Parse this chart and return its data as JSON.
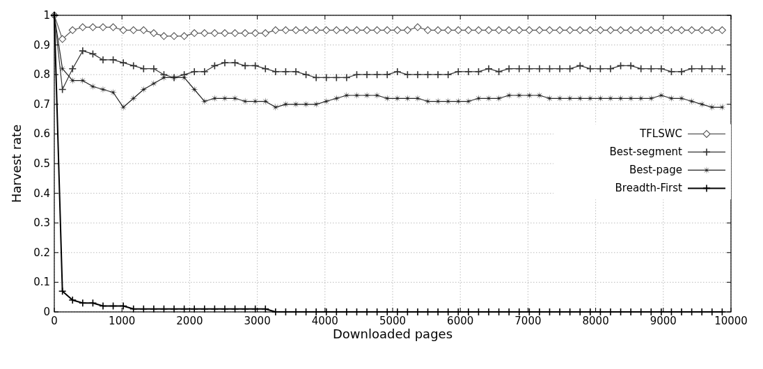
{
  "chart_data": {
    "type": "line",
    "xlabel": "Downloaded pages",
    "ylabel": "Harvest rate",
    "x": [
      0,
      120,
      270,
      420,
      570,
      720,
      870,
      1020,
      1170,
      1320,
      1470,
      1620,
      1770,
      1920,
      2070,
      2220,
      2370,
      2520,
      2670,
      2820,
      2970,
      3120,
      3270,
      3420,
      3570,
      3720,
      3870,
      4020,
      4170,
      4320,
      4470,
      4620,
      4770,
      4920,
      5070,
      5220,
      5370,
      5520,
      5670,
      5820,
      5970,
      6120,
      6270,
      6420,
      6570,
      6720,
      6870,
      7020,
      7170,
      7320,
      7470,
      7620,
      7770,
      7920,
      8070,
      8220,
      8370,
      8520,
      8670,
      8820,
      8970,
      9120,
      9270,
      9420,
      9570,
      9720,
      9870
    ],
    "series": [
      {
        "name": "TFLSWC",
        "color": "#555555",
        "marker": "diamond",
        "values": [
          1,
          0.92,
          0.95,
          0.96,
          0.96,
          0.96,
          0.96,
          0.95,
          0.95,
          0.95,
          0.94,
          0.93,
          0.93,
          0.93,
          0.94,
          0.94,
          0.94,
          0.94,
          0.94,
          0.94,
          0.94,
          0.94,
          0.95,
          0.95,
          0.95,
          0.95,
          0.95,
          0.95,
          0.95,
          0.95,
          0.95,
          0.95,
          0.95,
          0.95,
          0.95,
          0.95,
          0.96,
          0.95,
          0.95,
          0.95,
          0.95,
          0.95,
          0.95,
          0.95,
          0.95,
          0.95,
          0.95,
          0.95,
          0.95,
          0.95,
          0.95,
          0.95,
          0.95,
          0.95,
          0.95,
          0.95,
          0.95,
          0.95,
          0.95,
          0.95,
          0.95,
          0.95,
          0.95,
          0.95,
          0.95,
          0.95,
          0.95
        ]
      },
      {
        "name": "Best-segment",
        "color": "#333333",
        "marker": "cross",
        "values": [
          1,
          0.75,
          0.82,
          0.88,
          0.87,
          0.85,
          0.85,
          0.84,
          0.83,
          0.82,
          0.82,
          0.8,
          0.79,
          0.8,
          0.81,
          0.81,
          0.83,
          0.84,
          0.84,
          0.83,
          0.83,
          0.82,
          0.81,
          0.81,
          0.81,
          0.8,
          0.79,
          0.79,
          0.79,
          0.79,
          0.8,
          0.8,
          0.8,
          0.8,
          0.81,
          0.8,
          0.8,
          0.8,
          0.8,
          0.8,
          0.81,
          0.81,
          0.81,
          0.82,
          0.81,
          0.82,
          0.82,
          0.82,
          0.82,
          0.82,
          0.82,
          0.82,
          0.83,
          0.82,
          0.82,
          0.82,
          0.83,
          0.83,
          0.82,
          0.82,
          0.82,
          0.81,
          0.81,
          0.82,
          0.82,
          0.82,
          0.82
        ]
      },
      {
        "name": "Best-page",
        "color": "#222222",
        "marker": "star",
        "values": [
          1,
          0.82,
          0.78,
          0.78,
          0.76,
          0.75,
          0.74,
          0.69,
          0.72,
          0.75,
          0.77,
          0.79,
          0.79,
          0.79,
          0.75,
          0.71,
          0.72,
          0.72,
          0.72,
          0.71,
          0.71,
          0.71,
          0.69,
          0.7,
          0.7,
          0.7,
          0.7,
          0.71,
          0.72,
          0.73,
          0.73,
          0.73,
          0.73,
          0.72,
          0.72,
          0.72,
          0.72,
          0.71,
          0.71,
          0.71,
          0.71,
          0.71,
          0.72,
          0.72,
          0.72,
          0.73,
          0.73,
          0.73,
          0.73,
          0.72,
          0.72,
          0.72,
          0.72,
          0.72,
          0.72,
          0.72,
          0.72,
          0.72,
          0.72,
          0.72,
          0.73,
          0.72,
          0.72,
          0.71,
          0.7,
          0.69,
          0.69
        ]
      },
      {
        "name": "Breadth-First",
        "color": "#000000",
        "marker": "cross",
        "values": [
          1,
          0.07,
          0.04,
          0.03,
          0.03,
          0.02,
          0.02,
          0.02,
          0.01,
          0.01,
          0.01,
          0.01,
          0.01,
          0.01,
          0.01,
          0.01,
          0.01,
          0.01,
          0.01,
          0.01,
          0.01,
          0.01,
          0,
          0,
          0,
          0,
          0,
          0,
          0,
          0,
          0,
          0,
          0,
          0,
          0,
          0,
          0,
          0,
          0,
          0,
          0,
          0,
          0,
          0,
          0,
          0,
          0,
          0,
          0,
          0,
          0,
          0,
          0,
          0,
          0,
          0,
          0,
          0,
          0,
          0,
          0,
          0,
          0,
          0,
          0,
          0,
          0
        ]
      }
    ],
    "xlim": [
      0,
      10000
    ],
    "xticks": [
      0,
      1000,
      2000,
      3000,
      4000,
      5000,
      6000,
      7000,
      8000,
      9000,
      10000
    ],
    "ylim": [
      0,
      1
    ],
    "yticks": [
      0,
      0.1,
      0.2,
      0.3,
      0.4,
      0.5,
      0.6,
      0.7,
      0.8,
      0.9,
      1
    ],
    "grid": true,
    "legend": "right"
  }
}
